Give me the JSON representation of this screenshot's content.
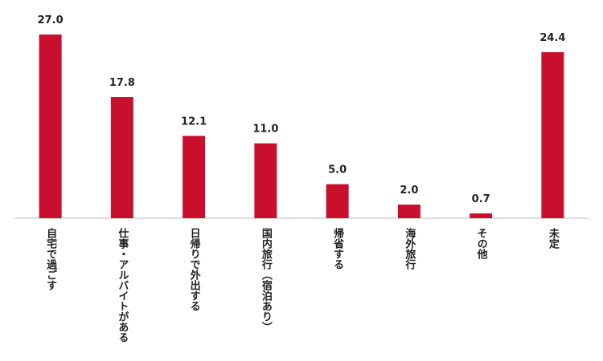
{
  "chart_data": {
    "type": "bar",
    "categories": [
      "自宅で過ごす",
      "仕事・アルバイトがある",
      "日帰りで外出する",
      "国内旅行（宿泊あり）",
      "帰省する",
      "海外旅行",
      "その他",
      "未定"
    ],
    "values": [
      27.0,
      17.8,
      12.1,
      11.0,
      5.0,
      2.0,
      0.7,
      24.4
    ],
    "value_labels": [
      "27.0",
      "17.8",
      "12.1",
      "11.0",
      "5.0",
      "2.0",
      "0.7",
      "24.4"
    ],
    "color": "#c8102e"
  }
}
